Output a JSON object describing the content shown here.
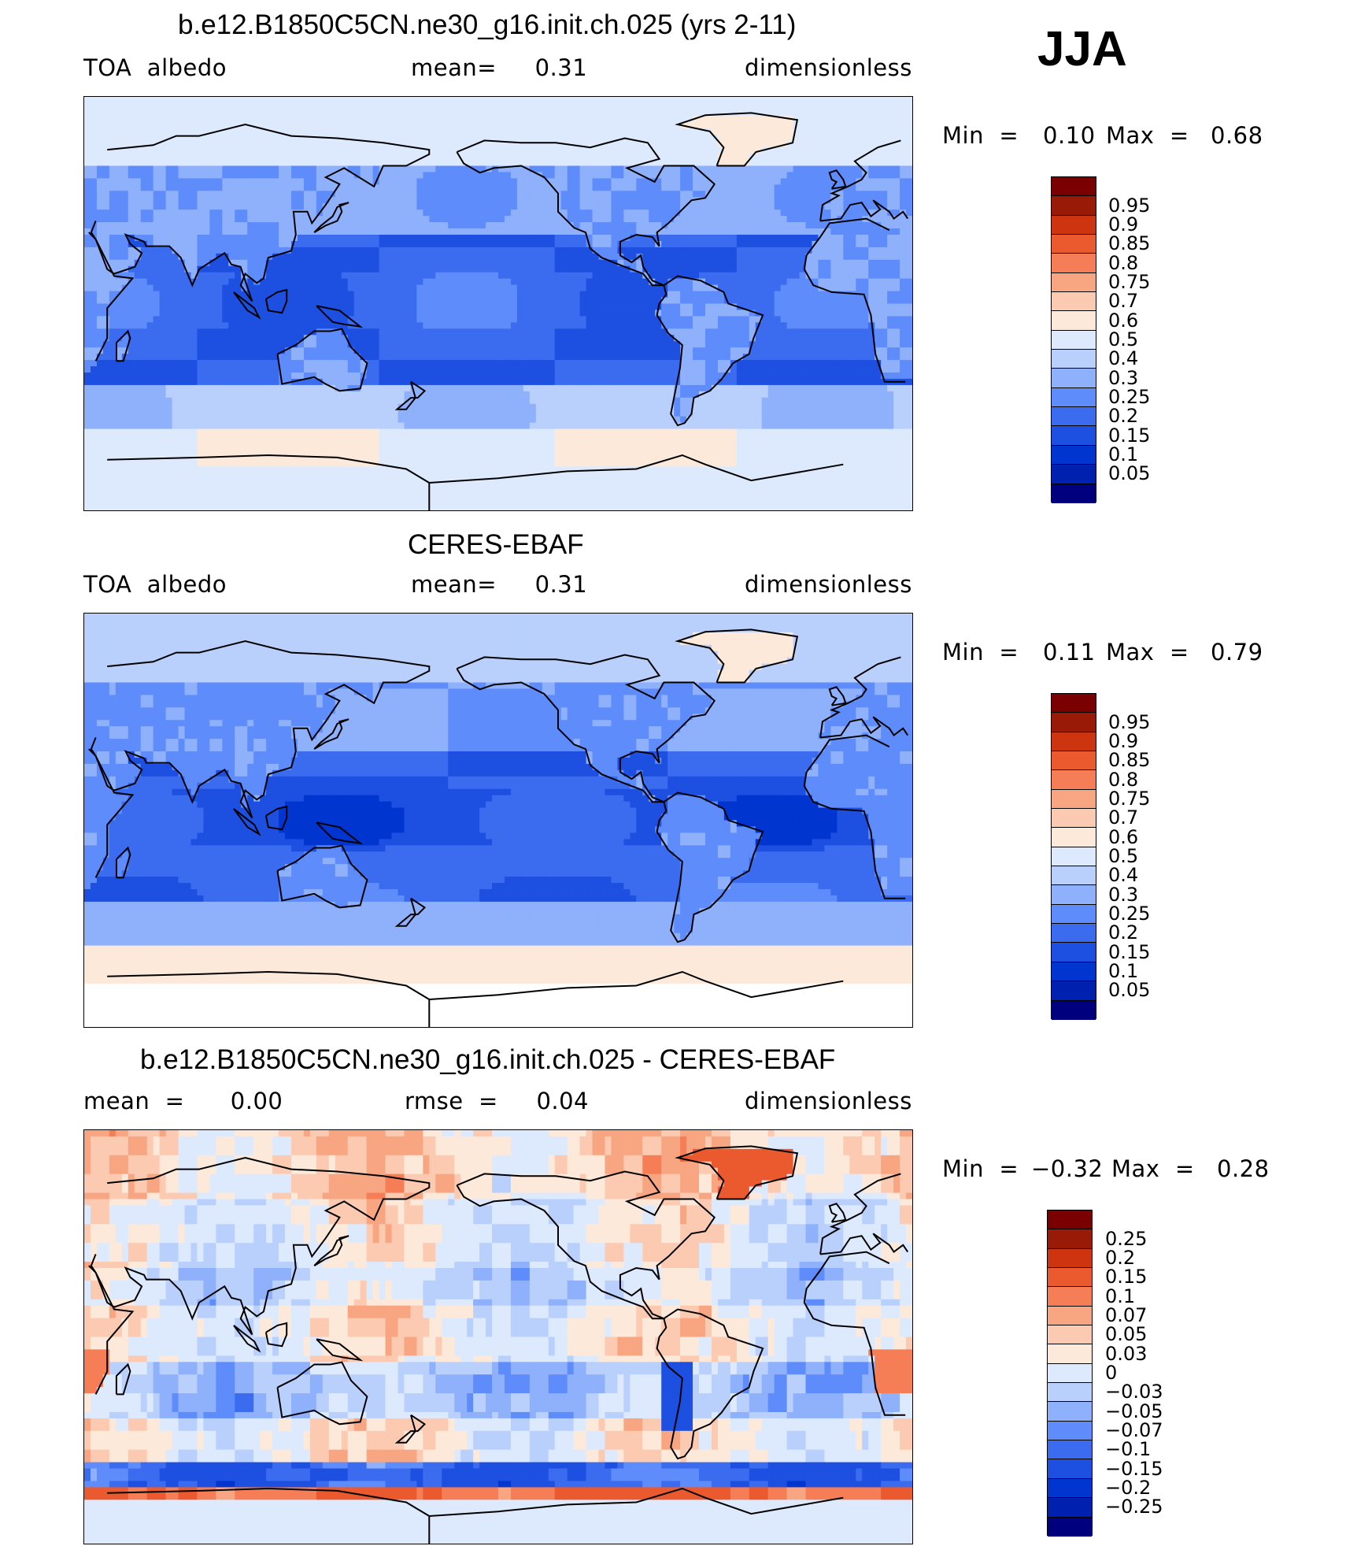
{
  "season": "JJA",
  "colors": {
    "levels_abs": [
      "#00007f",
      "#0020b0",
      "#0035d0",
      "#1d4fe0",
      "#3b6cf0",
      "#5e8cfb",
      "#8fb1fc",
      "#b9d0fd",
      "#ddeafe",
      "#fde9da",
      "#fbcab1",
      "#f8a582",
      "#f57e56",
      "#eb5a2e",
      "#cd3410",
      "#9a1a08",
      "#7a0000"
    ],
    "levels_diff": [
      "#00007f",
      "#0020b0",
      "#0035d0",
      "#1d4fe0",
      "#3b6cf0",
      "#5e8cfb",
      "#8fb1fc",
      "#b9d0fd",
      "#ddeafe",
      "#fde9da",
      "#fbcab1",
      "#f8a582",
      "#f57e56",
      "#eb5a2e",
      "#cd3410",
      "#9a1a08",
      "#7a0000"
    ]
  },
  "panels": [
    {
      "title": "b.e12.B1850C5CN.ne30_g16.init.ch.025 (yrs 2-11)",
      "left": "TOA  albedo",
      "center": "mean=     0.31",
      "right": "dimensionless",
      "min_label": "Min  =",
      "min_value": "0.10",
      "max_label": "Max  =",
      "max_value": "0.68",
      "colorbar_labels": [
        "0.95",
        "0.9",
        "0.85",
        "0.8",
        "0.75",
        "0.7",
        "0.6",
        "0.5",
        "0.4",
        "0.3",
        "0.25",
        "0.2",
        "0.15",
        "0.1",
        "0.05"
      ]
    },
    {
      "title": "CERES-EBAF",
      "left": "TOA  albedo",
      "center": "mean=     0.31",
      "right": "dimensionless",
      "min_label": "Min  =",
      "min_value": "0.11",
      "max_label": "Max  =",
      "max_value": "0.79",
      "colorbar_labels": [
        "0.95",
        "0.9",
        "0.85",
        "0.8",
        "0.75",
        "0.7",
        "0.6",
        "0.5",
        "0.4",
        "0.3",
        "0.25",
        "0.2",
        "0.15",
        "0.1",
        "0.05"
      ]
    },
    {
      "title": "b.e12.B1850C5CN.ne30_g16.init.ch.025 - CERES-EBAF",
      "left": "mean  =      0.00",
      "center": "rmse  =     0.04",
      "right": "dimensionless",
      "min_label": "Min  =",
      "min_value": "−0.32",
      "max_label": "Max  =",
      "max_value": "0.28",
      "colorbar_labels": [
        "0.25",
        "0.2",
        "0.15",
        "0.1",
        "0.07",
        "0.05",
        "0.03",
        "0",
        "−0.03",
        "−0.05",
        "−0.07",
        "−0.1",
        "−0.15",
        "−0.2",
        "−0.25"
      ]
    }
  ],
  "chart_data": [
    {
      "type": "heatmap",
      "title": "b.e12.B1850C5CN.ne30_g16.init.ch.025 (yrs 2-11)",
      "variable": "TOA  albedo",
      "units": "dimensionless",
      "mean": 0.31,
      "min": 0.1,
      "max": 0.68,
      "color_levels": [
        0.05,
        0.1,
        0.15,
        0.2,
        0.25,
        0.3,
        0.4,
        0.5,
        0.6,
        0.7,
        0.75,
        0.8,
        0.85,
        0.9,
        0.95
      ],
      "zonal_bands": [
        {
          "lat_range": [
            60,
            90
          ],
          "value": 0.55
        },
        {
          "lat_range": [
            30,
            60
          ],
          "value": 0.33
        },
        {
          "lat_range": [
            15,
            30
          ],
          "value": 0.2
        },
        {
          "lat_range": [
            -10,
            15
          ],
          "value": 0.22
        },
        {
          "lat_range": [
            -35,
            -10
          ],
          "value": 0.2
        },
        {
          "lat_range": [
            -55,
            -35
          ],
          "value": 0.42
        },
        {
          "lat_range": [
            -70,
            -55
          ],
          "value": 0.6
        },
        {
          "lat_range": [
            -90,
            -70
          ],
          "value": 0.55
        }
      ]
    },
    {
      "type": "heatmap",
      "title": "CERES-EBAF",
      "variable": "TOA  albedo",
      "units": "dimensionless",
      "mean": 0.31,
      "min": 0.11,
      "max": 0.79,
      "color_levels": [
        0.05,
        0.1,
        0.15,
        0.2,
        0.25,
        0.3,
        0.4,
        0.5,
        0.6,
        0.7,
        0.75,
        0.8,
        0.85,
        0.9,
        0.95
      ],
      "zonal_bands": [
        {
          "lat_range": [
            60,
            90
          ],
          "value": 0.45
        },
        {
          "lat_range": [
            30,
            60
          ],
          "value": 0.3
        },
        {
          "lat_range": [
            15,
            30
          ],
          "value": 0.2
        },
        {
          "lat_range": [
            -10,
            15
          ],
          "value": 0.18
        },
        {
          "lat_range": [
            -35,
            -10
          ],
          "value": 0.22
        },
        {
          "lat_range": [
            -55,
            -35
          ],
          "value": 0.35
        },
        {
          "lat_range": [
            -70,
            -55
          ],
          "value": 0.65
        },
        {
          "lat_range": [
            -90,
            -70
          ],
          "value": null
        }
      ]
    },
    {
      "type": "heatmap",
      "title": "b.e12.B1850C5CN.ne30_g16.init.ch.025 - CERES-EBAF",
      "variable": "TOA albedo difference",
      "units": "dimensionless",
      "mean": 0.0,
      "rmse": 0.04,
      "min": -0.32,
      "max": 0.28,
      "color_levels": [
        -0.25,
        -0.2,
        -0.15,
        -0.1,
        -0.07,
        -0.05,
        -0.03,
        0,
        0.03,
        0.05,
        0.07,
        0.1,
        0.15,
        0.2,
        0.25
      ],
      "zonal_bands": [
        {
          "lat_range": [
            60,
            90
          ],
          "value": 0.05
        },
        {
          "lat_range": [
            30,
            60
          ],
          "value": 0.02
        },
        {
          "lat_range": [
            15,
            30
          ],
          "value": 0.0
        },
        {
          "lat_range": [
            -10,
            15
          ],
          "value": 0.03
        },
        {
          "lat_range": [
            -35,
            -10
          ],
          "value": -0.02
        },
        {
          "lat_range": [
            -55,
            -35
          ],
          "value": 0.03
        },
        {
          "lat_range": [
            -65,
            -55
          ],
          "value": -0.1
        },
        {
          "lat_range": [
            -70,
            -65
          ],
          "value": 0.15
        }
      ]
    }
  ]
}
